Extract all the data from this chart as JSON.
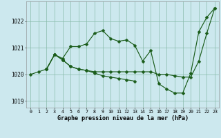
{
  "title": "Graphe pression niveau de la mer (hPa)",
  "xlim": [
    -0.5,
    23.5
  ],
  "ylim": [
    1018.75,
    1022.75
  ],
  "yticks": [
    1019,
    1020,
    1021,
    1022
  ],
  "xticks": [
    0,
    1,
    2,
    3,
    4,
    5,
    6,
    7,
    8,
    9,
    10,
    11,
    12,
    13,
    14,
    15,
    16,
    17,
    18,
    19,
    20,
    21,
    22,
    23
  ],
  "background_color": "#cce8ee",
  "grid_color": "#88bbaa",
  "line_color": "#1a5c1a",
  "line1_x": [
    0,
    1,
    2,
    3,
    4,
    5,
    6,
    7,
    8,
    9,
    10,
    11,
    12,
    13,
    14,
    15,
    16,
    17,
    18,
    19,
    20,
    21,
    22,
    23
  ],
  "line1_y": [
    1020.0,
    1020.1,
    1020.2,
    1020.75,
    1020.6,
    1021.05,
    1021.05,
    1021.15,
    1021.55,
    1021.65,
    1021.35,
    1021.25,
    1021.3,
    1021.1,
    1020.5,
    1020.9,
    1019.65,
    1019.45,
    1019.3,
    1019.3,
    1020.05,
    1021.6,
    1022.15,
    1022.5
  ],
  "line2_x": [
    2,
    3,
    4,
    5,
    6,
    7,
    8,
    9,
    10,
    11,
    12,
    13,
    14,
    15,
    16,
    17,
    18,
    19,
    20,
    21,
    22,
    23
  ],
  "line2_y": [
    1020.2,
    1020.75,
    1020.55,
    1020.3,
    1020.2,
    1020.15,
    1020.1,
    1020.1,
    1020.1,
    1020.1,
    1020.1,
    1020.1,
    1020.1,
    1020.1,
    1020.0,
    1020.0,
    1019.95,
    1019.9,
    1019.9,
    1020.5,
    1021.55,
    1022.5
  ],
  "line3_x": [
    2,
    3,
    4,
    5,
    6,
    7,
    8,
    9,
    10,
    11,
    12,
    13
  ],
  "line3_y": [
    1020.2,
    1020.75,
    1020.55,
    1020.3,
    1020.2,
    1020.15,
    1020.05,
    1019.95,
    1019.9,
    1019.85,
    1019.8,
    1019.75
  ]
}
